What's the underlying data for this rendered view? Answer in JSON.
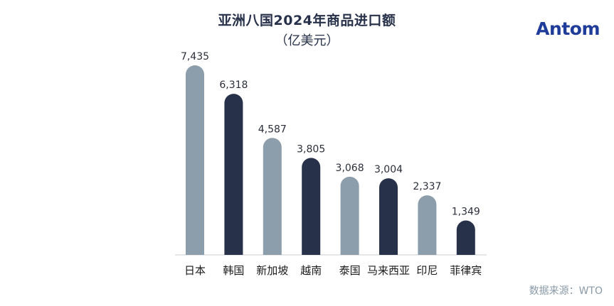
{
  "header": {
    "title": "亚洲八国2024年商品进口额",
    "subtitle": "（亿美元）",
    "logo_text": "Antom"
  },
  "footer": {
    "source": "数据来源：WTO"
  },
  "chart_data": {
    "type": "bar",
    "title": "亚洲八国2024年商品进口额",
    "subtitle": "（亿美元）",
    "xlabel": "",
    "ylabel": "",
    "categories": [
      "日本",
      "韩国",
      "新加坡",
      "越南",
      "泰国",
      "马来西亚",
      "印尼",
      "菲律宾"
    ],
    "values": [
      7435,
      6318,
      4587,
      3805,
      3068,
      3004,
      2337,
      1349
    ],
    "value_labels": [
      "7,435",
      "6,318",
      "4,587",
      "3,805",
      "3,068",
      "3,004",
      "2,337",
      "1,349"
    ],
    "bar_colors": [
      "#8c9dab",
      "#27314a",
      "#8c9dab",
      "#27314a",
      "#8c9dab",
      "#27314a",
      "#8c9dab",
      "#27314a"
    ],
    "ylim": [
      0,
      7435
    ],
    "grid": false,
    "legend": "none"
  }
}
